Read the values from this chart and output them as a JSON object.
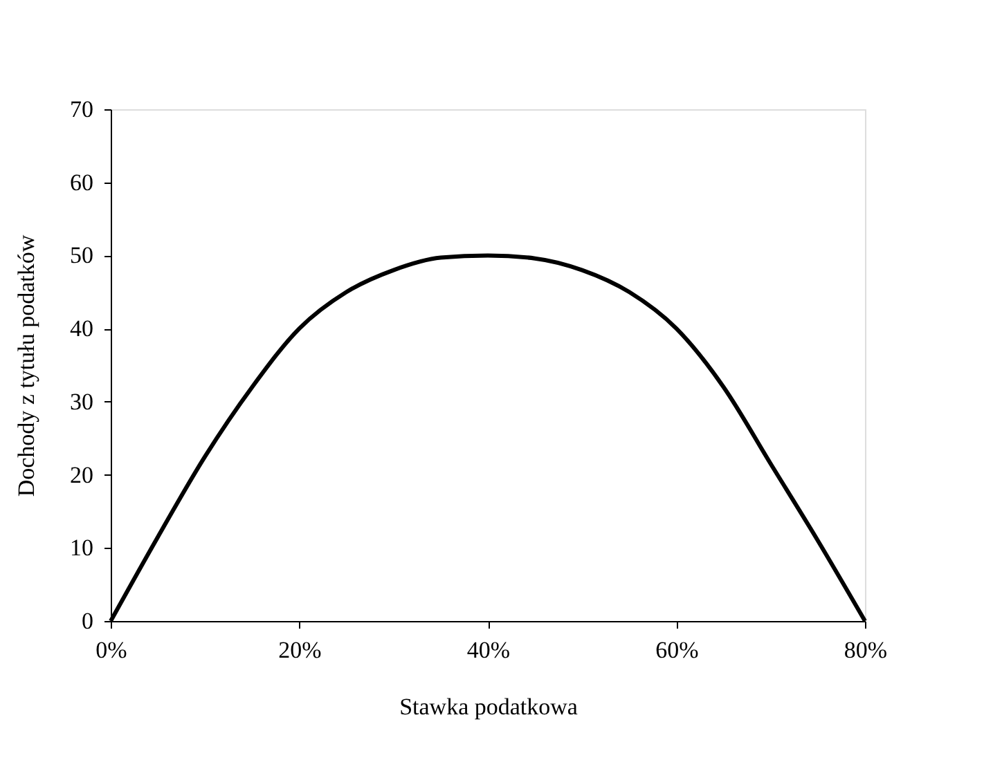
{
  "chart_data": {
    "type": "line",
    "xlabel": "Stawka podatkowa",
    "ylabel": "Dochody z tytułu podatków",
    "x": [
      0,
      5,
      10,
      15,
      20,
      25,
      30,
      35,
      40,
      45,
      50,
      55,
      60,
      65,
      70,
      75,
      80
    ],
    "series": [
      {
        "color": "#000000",
        "values": [
          0,
          11.5,
          22.5,
          32,
          40,
          45,
          48,
          49.7,
          50,
          49.6,
          48,
          45,
          40,
          32,
          21.5,
          11,
          0
        ]
      }
    ],
    "xlim": [
      0,
      80
    ],
    "xticks": [
      {
        "value": 0,
        "label": "0%"
      },
      {
        "value": 20,
        "label": "20%"
      },
      {
        "value": 40,
        "label": "40%"
      },
      {
        "value": 60,
        "label": "60%"
      },
      {
        "value": 80,
        "label": "80%"
      }
    ],
    "ylim": [
      0,
      70
    ],
    "yticks": [
      0,
      10,
      20,
      30,
      40,
      50,
      60,
      70
    ],
    "grid": false,
    "marker": "none",
    "line_style": "solid"
  }
}
